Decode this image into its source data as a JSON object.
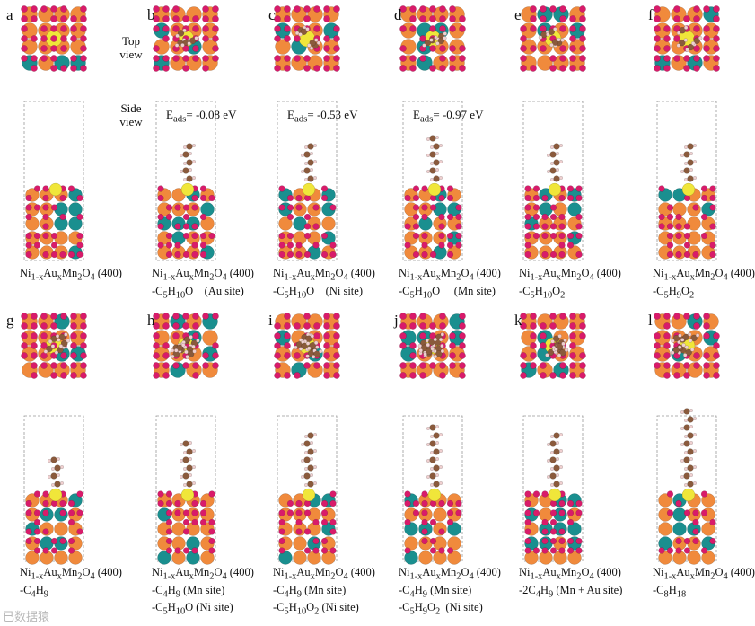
{
  "view_labels": {
    "top": "Top\nview",
    "side": "Side\nview"
  },
  "panels": [
    {
      "label": "a",
      "caption": [
        "Ni1-xAuxMn2O4 (400)"
      ],
      "eads": ""
    },
    {
      "label": "b",
      "caption": [
        "Ni1-xAuxMn2O4 (400)",
        "-C5H10O    (Au site)"
      ],
      "eads": "Eads= -0.08 eV"
    },
    {
      "label": "c",
      "caption": [
        "Ni1-xAuxMn2O4 (400)",
        "-C5H10O    (Ni site)"
      ],
      "eads": "Eads= -0.53 eV"
    },
    {
      "label": "d",
      "caption": [
        "Ni1-xAuxMn2O4 (400)",
        "-C5H10O     (Mn site)"
      ],
      "eads": "Eads= -0.97 eV"
    },
    {
      "label": "e",
      "caption": [
        "Ni1-xAuxMn2O4 (400)",
        "-C5H10O2"
      ],
      "eads": ""
    },
    {
      "label": "f",
      "caption": [
        "Ni1-xAuxMn2O4 (400)",
        "-C5H9O2"
      ],
      "eads": ""
    },
    {
      "label": "g",
      "caption": [
        "Ni1-xAuxMn2O4 (400)",
        "-C4H9"
      ],
      "eads": ""
    },
    {
      "label": "h",
      "caption": [
        "Ni1-xAuxMn2O4 (400)",
        "-C4H9 (Mn site)",
        "-C5H10O (Ni site)"
      ],
      "eads": ""
    },
    {
      "label": "i",
      "caption": [
        "Ni1-xAuxMn2O4 (400)",
        "-C4H9 (Mn site)",
        "-C5H10O2 (Ni site)"
      ],
      "eads": ""
    },
    {
      "label": "j",
      "caption": [
        "Ni1-xAuxMn2O4 (400)",
        "-C4H9 (Mn site)",
        "-C5H9O2  (Ni site)"
      ],
      "eads": ""
    },
    {
      "label": "k",
      "caption": [
        "Ni1-xAuxMn2O4 (400)",
        "-2C4H9 (Mn + Au site)"
      ],
      "eads": ""
    },
    {
      "label": "l",
      "caption": [
        "Ni1-xAuxMn2O4 (400)",
        "-C8H18"
      ],
      "eads": ""
    }
  ],
  "colors": {
    "oxygen": "#d81b6a",
    "manganese": "#f08a3c",
    "nickel": "#1a8f8f",
    "gold": "#f0e63a",
    "carbon": "#8a5a3c",
    "hydrogen": "#f0d0d0",
    "box": "#999999"
  },
  "watermark": "已数据猿"
}
